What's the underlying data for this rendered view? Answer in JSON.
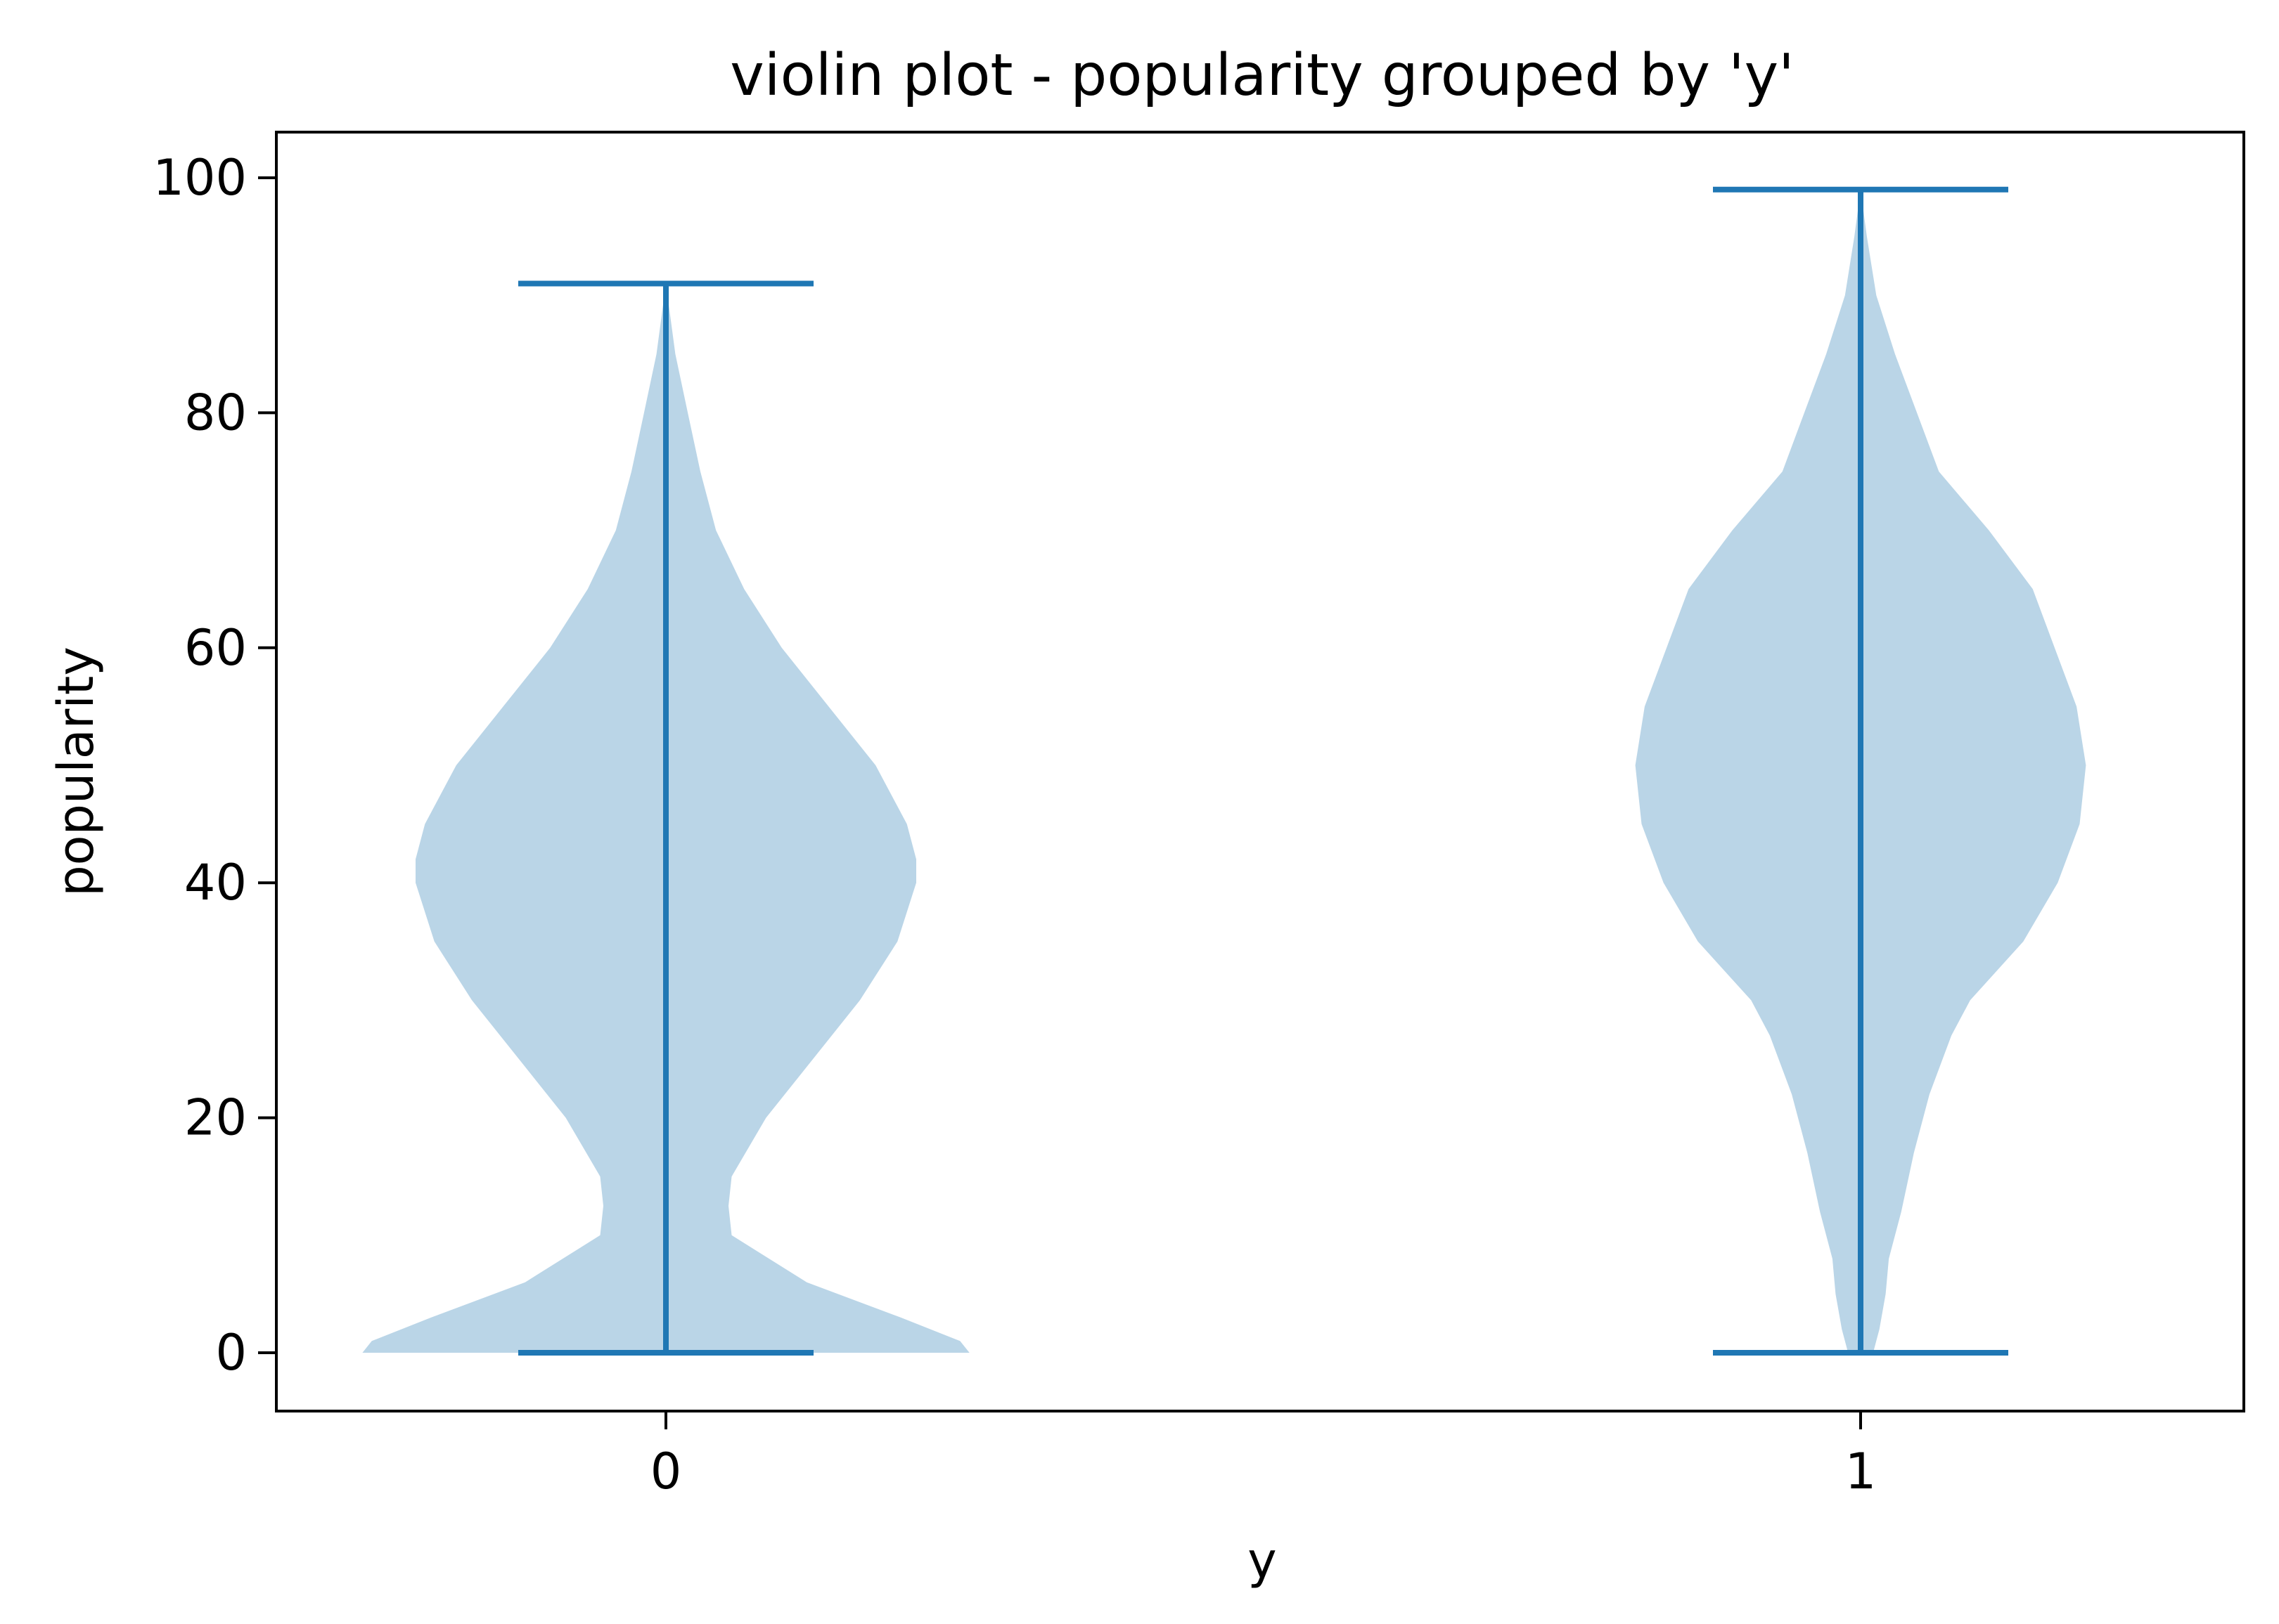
{
  "chart_data": {
    "type": "violin",
    "title": "violin plot - popularity grouped by 'y'",
    "xlabel": "y",
    "ylabel": "popularity",
    "categories": [
      "0",
      "1"
    ],
    "ylim": [
      -5,
      104
    ],
    "y_ticks": [
      0,
      20,
      40,
      60,
      80,
      100
    ],
    "grid": false,
    "colors": {
      "body": "#bad5e7",
      "line": "#1f77b4"
    },
    "series": [
      {
        "category": "0",
        "min": 0,
        "max": 91,
        "profile": [
          [
            0,
            0.97
          ],
          [
            1,
            0.94
          ],
          [
            3,
            0.75
          ],
          [
            6,
            0.45
          ],
          [
            10,
            0.21
          ],
          [
            12.5,
            0.2
          ],
          [
            15,
            0.21
          ],
          [
            20,
            0.32
          ],
          [
            25,
            0.47
          ],
          [
            30,
            0.62
          ],
          [
            35,
            0.74
          ],
          [
            40,
            0.8
          ],
          [
            42,
            0.8
          ],
          [
            45,
            0.77
          ],
          [
            50,
            0.67
          ],
          [
            55,
            0.52
          ],
          [
            60,
            0.37
          ],
          [
            65,
            0.25
          ],
          [
            70,
            0.16
          ],
          [
            75,
            0.11
          ],
          [
            80,
            0.07
          ],
          [
            85,
            0.03
          ],
          [
            88,
            0.015
          ],
          [
            91,
            0
          ]
        ]
      },
      {
        "category": "1",
        "min": 0,
        "max": 99,
        "profile": [
          [
            0,
            0.04
          ],
          [
            2,
            0.06
          ],
          [
            5,
            0.08
          ],
          [
            8,
            0.09
          ],
          [
            12,
            0.13
          ],
          [
            17,
            0.17
          ],
          [
            22,
            0.22
          ],
          [
            27,
            0.29
          ],
          [
            30,
            0.35
          ],
          [
            35,
            0.52
          ],
          [
            40,
            0.63
          ],
          [
            45,
            0.7
          ],
          [
            50,
            0.72
          ],
          [
            55,
            0.69
          ],
          [
            60,
            0.62
          ],
          [
            65,
            0.55
          ],
          [
            70,
            0.41
          ],
          [
            75,
            0.25
          ],
          [
            80,
            0.18
          ],
          [
            85,
            0.11
          ],
          [
            90,
            0.05
          ],
          [
            95,
            0.02
          ],
          [
            99,
            0
          ]
        ]
      }
    ]
  }
}
